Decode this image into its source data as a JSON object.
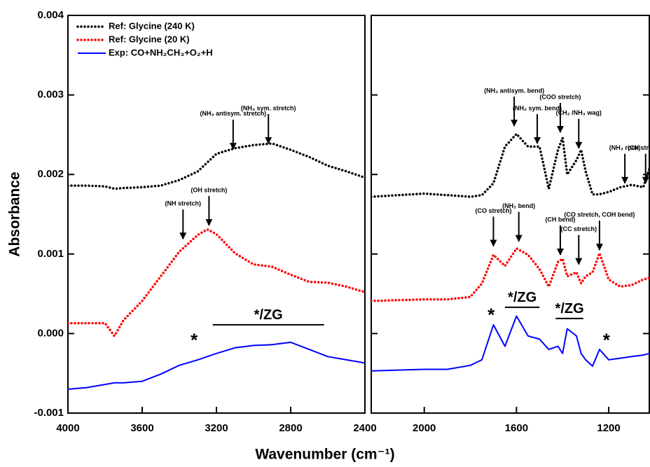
{
  "chart_data": [
    {
      "type": "line",
      "ylabel": "Absorbance",
      "xlabel": "Wavenumber (cm⁻¹)",
      "legend": "upper left",
      "xlim": [
        4000,
        2400
      ],
      "xticks": [
        4000,
        3600,
        3200,
        2800,
        2400
      ],
      "ylim": [
        -0.001,
        0.004
      ],
      "yticks": [
        -0.001,
        {
          "value": 0,
          "label": "0.000"
        },
        0.001,
        0.002,
        0.003,
        0.004
      ],
      "show_y_tick_labels": true,
      "x": [
        4000,
        3900,
        3800,
        3750,
        3700,
        3600,
        3500,
        3400,
        3300,
        3250,
        3200,
        3100,
        3000,
        2900,
        2800,
        2700,
        2600,
        2500,
        2400
      ],
      "series": [
        {
          "name": "Ref: Glycine (240 K)",
          "color": "#000000",
          "style": "dotted",
          "values": [
            0.00186,
            0.00186,
            0.00185,
            0.00182,
            0.00183,
            0.00184,
            0.00186,
            0.00193,
            0.00204,
            0.00215,
            0.00226,
            0.00233,
            0.00237,
            0.00239,
            0.00231,
            0.00222,
            0.00211,
            0.00204,
            0.00196
          ]
        },
        {
          "name": "Ref: Glycine (20 K)",
          "color": "#ff0000",
          "style": "dotted",
          "values": [
            0.00013,
            0.00013,
            0.00013,
            -3e-05,
            0.00017,
            0.00041,
            0.00072,
            0.00103,
            0.00124,
            0.00131,
            0.00125,
            0.00101,
            0.00087,
            0.00084,
            0.00074,
            0.00065,
            0.00064,
            0.00059,
            0.00052
          ]
        },
        {
          "name": "Exp: CO+NH₂CH₃+O₂+H",
          "color": "#0000ff",
          "style": "solid",
          "values": [
            -0.0007,
            -0.00068,
            -0.00064,
            -0.00062,
            -0.00062,
            -0.0006,
            -0.00051,
            -0.0004,
            -0.00033,
            -0.00029,
            -0.00025,
            -0.00018,
            -0.00015,
            -0.00014,
            -0.00011,
            -0.0002,
            -0.00029,
            -0.00033,
            -0.00037
          ]
        }
      ],
      "annotations": [
        {
          "text": "(NH₃ antisym. stretch)",
          "x": 3110,
          "y": 0.00232
        },
        {
          "text": "(NH₃ sym. stretch)",
          "x": 2920,
          "y": 0.00239
        },
        {
          "text": "(NH stretch)",
          "x": 3380,
          "y": 0.00119
        },
        {
          "text": "(OH stretch)",
          "x": 3240,
          "y": 0.00136
        }
      ],
      "markers": [
        {
          "text": "*",
          "x": 3320,
          "y": -0.0001
        },
        {
          "text": "*/ZG",
          "x": [
            3220,
            2620
          ],
          "y": 0.00011
        }
      ]
    },
    {
      "type": "line",
      "xlim": [
        2230,
        1024
      ],
      "xticks": [
        2000,
        1600,
        1200
      ],
      "ylim": [
        -0.001,
        0.004
      ],
      "yticks": [
        -0.001,
        0,
        0.001,
        0.002,
        0.003,
        0.004
      ],
      "show_y_tick_labels": false,
      "x": [
        2230,
        2000,
        1900,
        1800,
        1750,
        1700,
        1650,
        1600,
        1550,
        1500,
        1460,
        1420,
        1400,
        1380,
        1340,
        1320,
        1300,
        1270,
        1240,
        1200,
        1150,
        1100,
        1050,
        1024
      ],
      "series": [
        {
          "color": "#000000",
          "style": "dotted",
          "values": [
            0.00172,
            0.00176,
            0.00174,
            0.00172,
            0.00174,
            0.00189,
            0.00235,
            0.00251,
            0.00235,
            0.00235,
            0.00182,
            0.00231,
            0.00246,
            0.002,
            0.00218,
            0.00231,
            0.00204,
            0.00175,
            0.00175,
            0.00178,
            0.00184,
            0.00187,
            0.00184,
            0.00207
          ]
        },
        {
          "color": "#ff0000",
          "style": "dotted",
          "values": [
            0.00041,
            0.00043,
            0.00043,
            0.00046,
            0.00063,
            0.00099,
            0.00085,
            0.00107,
            0.00099,
            0.00081,
            0.00059,
            0.0009,
            0.00094,
            0.00072,
            0.00077,
            0.00063,
            0.00072,
            0.00077,
            0.00101,
            0.00068,
            0.00059,
            0.00061,
            0.00068,
            0.0007
          ]
        },
        {
          "color": "#0000ff",
          "style": "solid",
          "values": [
            -0.00047,
            -0.00045,
            -0.00045,
            -0.0004,
            -0.00033,
            0.00011,
            -0.00016,
            0.00022,
            -3e-05,
            -7e-05,
            -0.0002,
            -0.00016,
            -0.00025,
            6e-05,
            -3e-05,
            -0.00025,
            -0.00033,
            -0.00041,
            -0.0002,
            -0.00033,
            -0.00031,
            -0.00029,
            -0.00027,
            -0.00025
          ]
        }
      ],
      "annotations": [
        {
          "text": "(NH₂ antisym. bend)",
          "x": 1610,
          "y": 0.00261
        },
        {
          "text": "(NH₂ sym. bend)",
          "x": 1510,
          "y": 0.00239
        },
        {
          "text": "(COO stretch)",
          "x": 1410,
          "y": 0.00253
        },
        {
          "text": "(CH₂ /NH₃ wag)",
          "x": 1330,
          "y": 0.00233
        },
        {
          "text": "(NH₃ rock)",
          "x": 1130,
          "y": 0.00189
        },
        {
          "text": "(CN stretch)",
          "x": 1040,
          "y": 0.00189
        },
        {
          "text": "(CO stretch)",
          "x": 1700,
          "y": 0.0011
        },
        {
          "text": "(NH₂ bend)",
          "x": 1590,
          "y": 0.00116
        },
        {
          "text": "(CH bend)",
          "x": 1410,
          "y": 0.00099
        },
        {
          "text": "(CC stretch)",
          "x": 1330,
          "y": 0.00087
        },
        {
          "text": "(CO stretch, COH bend)",
          "x": 1240,
          "y": 0.00105
        }
      ],
      "markers": [
        {
          "text": "*",
          "x": 1710,
          "y": 0.00022
        },
        {
          "text": "*/ZG",
          "x": [
            1650,
            1500
          ],
          "y": 0.00033
        },
        {
          "text": "*/ZG",
          "x": [
            1430,
            1310
          ],
          "y": 0.00019
        },
        {
          "text": "*",
          "x": 1210,
          "y": -0.0001
        }
      ]
    }
  ]
}
